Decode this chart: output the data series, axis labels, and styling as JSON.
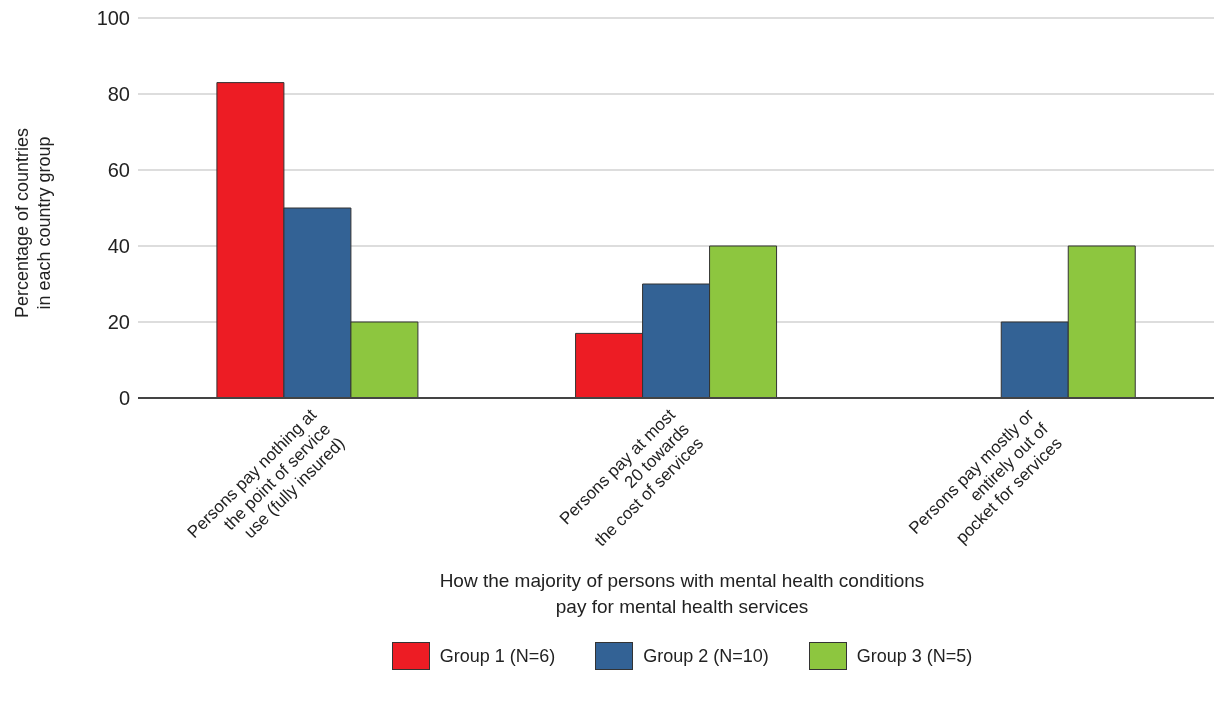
{
  "chart_data": {
    "type": "bar",
    "xlabel": "How the majority of persons with mental health conditions\npay for mental health services",
    "ylabel": "Percentage of countries\nin each country group",
    "categories": [
      "Persons pay nothing at\nthe point of service\nuse (fully insured)",
      "Persons pay at most\n20 towards\nthe cost of services",
      "Persons pay mostly or\nentirely out of\npocket for services"
    ],
    "series": [
      {
        "name": "Group 1 (N=6)",
        "color": "#ed1c24",
        "values": [
          83,
          17,
          0
        ]
      },
      {
        "name": "Group 2 (N=10)",
        "color": "#336295",
        "values": [
          50,
          30,
          20
        ]
      },
      {
        "name": "Group 3 (N=5)",
        "color": "#8dc63f",
        "values": [
          20,
          40,
          40
        ]
      }
    ],
    "ylim": [
      0,
      100
    ],
    "yticks": [
      0,
      20,
      40,
      60,
      80,
      100
    ],
    "grid": "y",
    "legend": "bottom"
  }
}
